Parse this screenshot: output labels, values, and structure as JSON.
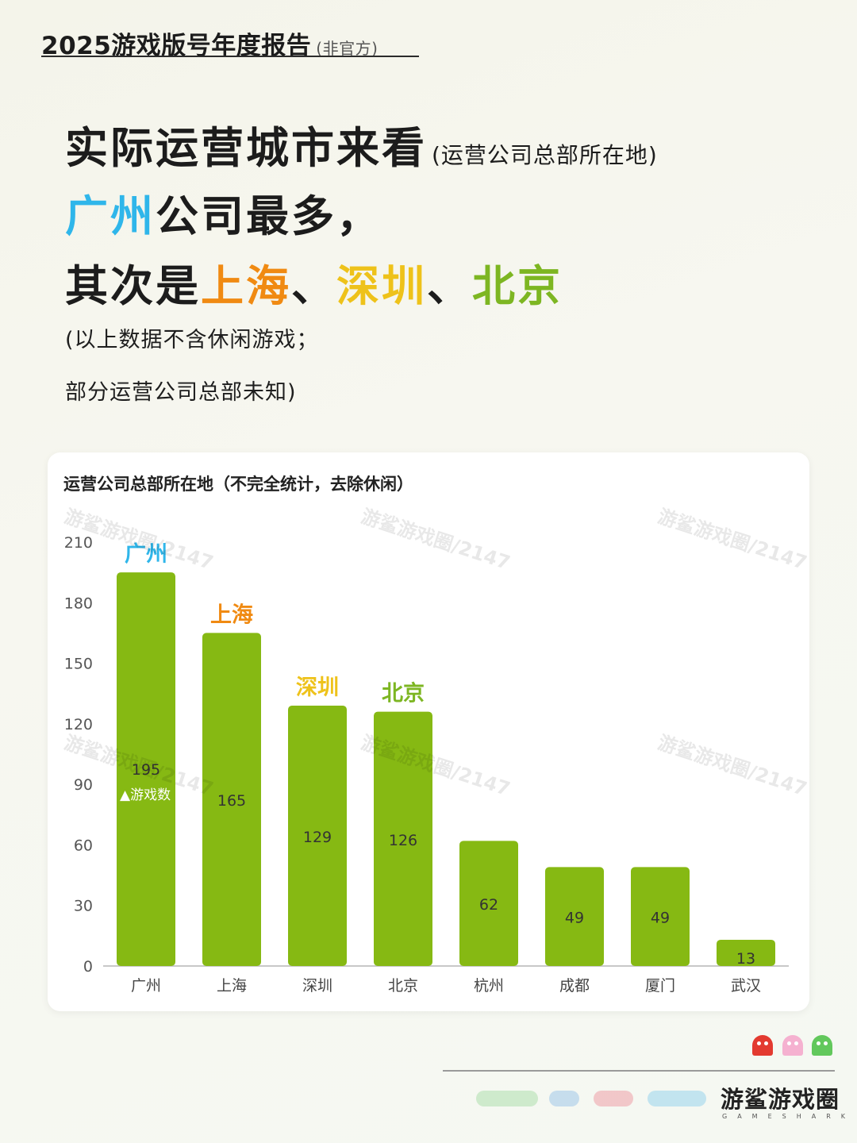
{
  "report": {
    "title": "2025游戏版号年度报告",
    "subtitle": "(非官方)"
  },
  "headline": {
    "line1": "实际运营城市来看",
    "line1_aside": "(运营公司总部所在地)",
    "line2_city": "广州",
    "line2_rest": "公司最多，",
    "line3_lead": "其次是",
    "line3_city1": "上海",
    "sep1": "、",
    "line3_city2": "深圳",
    "sep2": "、",
    "line3_city3": "北京"
  },
  "note": {
    "line1": "(以上数据不含休闲游戏；",
    "line2": "部分运营公司总部未知)"
  },
  "chart_title": "运营公司总部所在地（不完全统计，去除休闲）",
  "chart_data": {
    "type": "bar",
    "title": "运营公司总部所在地（不完全统计，去除休闲）",
    "categories": [
      "广州",
      "上海",
      "深圳",
      "北京",
      "杭州",
      "成都",
      "厦门",
      "武汉"
    ],
    "series": [
      {
        "name": "游戏数",
        "values": [
          195,
          165,
          129,
          126,
          62,
          49,
          49,
          13
        ]
      }
    ],
    "ylim": [
      0,
      210
    ],
    "yticks": [
      0,
      30,
      60,
      90,
      120,
      150,
      180,
      210
    ],
    "highlight_labels": [
      "广州",
      "上海",
      "深圳",
      "北京"
    ],
    "highlight_colors": [
      "#2fb6ea",
      "#f08a12",
      "#eec21a",
      "#7db622"
    ],
    "bar_color": "#86b913",
    "grid": false,
    "legend": "inside first bar"
  },
  "watermark": "游鲨游戏圈/2147",
  "brand": {
    "name": "游鲨游戏圈",
    "en": "GAMESHARK"
  }
}
